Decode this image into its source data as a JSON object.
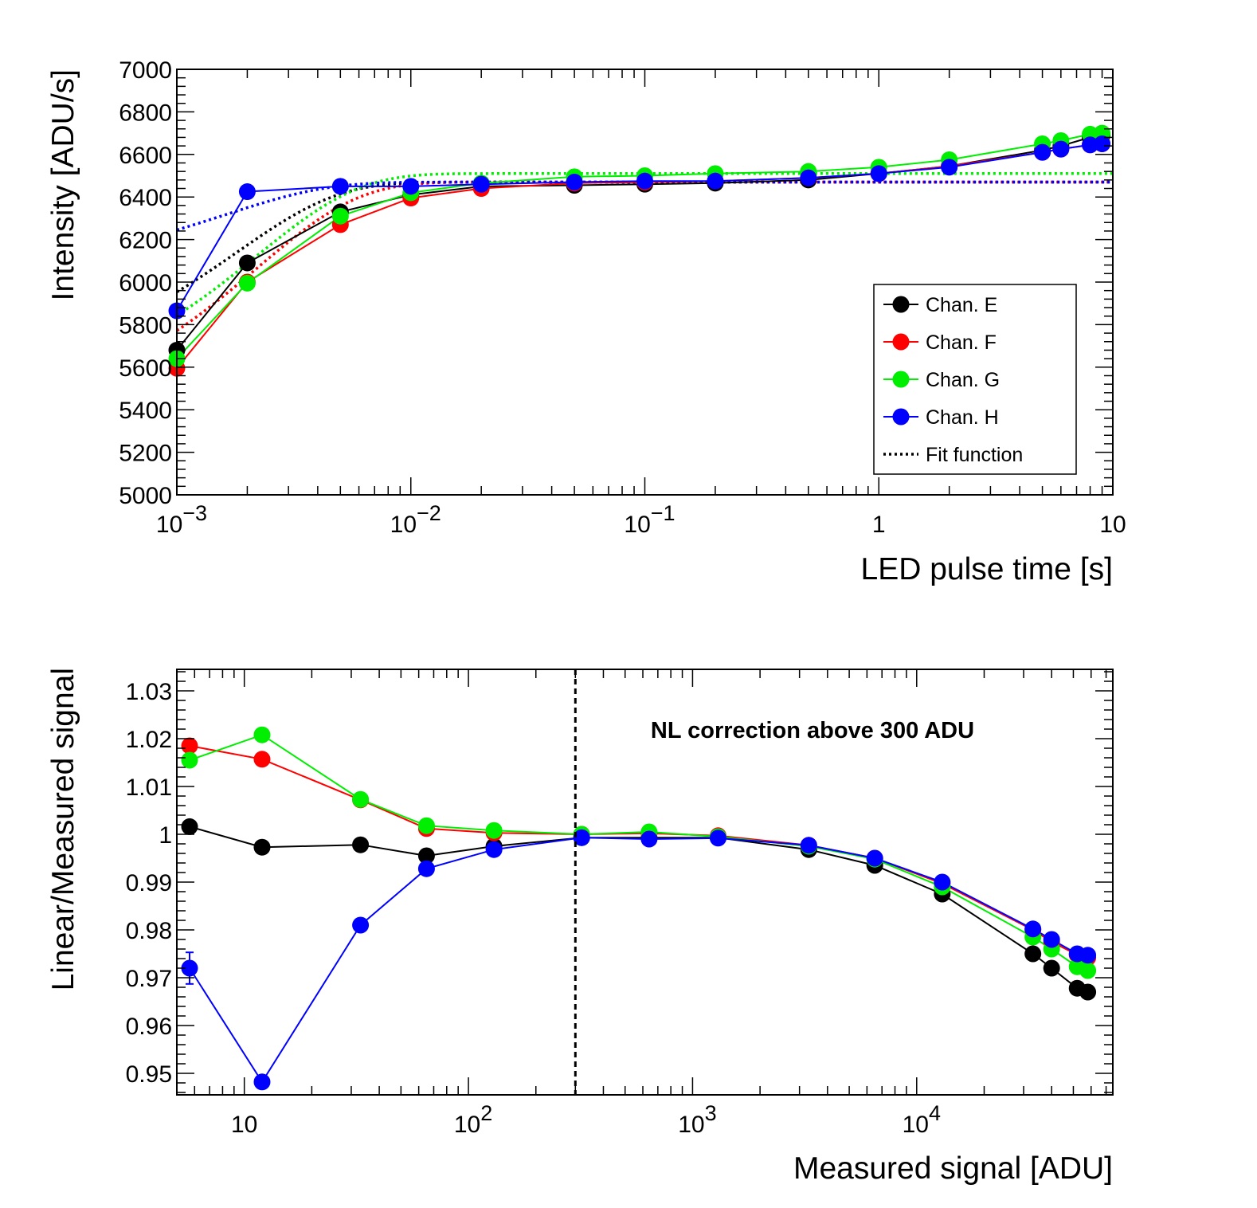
{
  "chart_data": [
    {
      "type": "line",
      "title": "",
      "xlabel": "LED pulse time [s]",
      "ylabel": "Intensity [ADU/s]",
      "xscale": "log",
      "xlim": [
        0.001,
        10
      ],
      "ylim": [
        5000,
        7000
      ],
      "x_tick_labels": [
        {
          "value": 0.001,
          "base": "10",
          "exp": "−3"
        },
        {
          "value": 0.01,
          "base": "10",
          "exp": "−2"
        },
        {
          "value": 0.1,
          "base": "10",
          "exp": "−1"
        },
        {
          "value": 1,
          "base": "1",
          "exp": ""
        },
        {
          "value": 10,
          "base": "10",
          "exp": ""
        }
      ],
      "y_ticks": [
        5000,
        5200,
        5400,
        5600,
        5800,
        6000,
        6200,
        6400,
        6600,
        6800,
        7000
      ],
      "y_tick_labels": [
        "5000",
        "5200",
        "5400",
        "5600",
        "5800",
        "6000",
        "6200",
        "6400",
        "6600",
        "6800",
        "7000"
      ],
      "legend_position": "bottom-right",
      "legend": [
        {
          "label": "Chan. E",
          "color": "#000000",
          "style": "marker"
        },
        {
          "label": "Chan. F",
          "color": "#ff0000",
          "style": "marker"
        },
        {
          "label": "Chan. G",
          "color": "#00ee00",
          "style": "marker"
        },
        {
          "label": "Chan. H",
          "color": "#0000ff",
          "style": "marker"
        },
        {
          "label": "Fit function",
          "color": "#000000",
          "style": "dotted"
        }
      ],
      "series": [
        {
          "name": "Chan. E",
          "color": "#000000",
          "x": [
            0.001,
            0.002,
            0.005,
            0.01,
            0.02,
            0.05,
            0.1,
            0.2,
            0.5,
            1,
            2,
            5,
            6,
            8,
            9
          ],
          "y": [
            5680,
            6090,
            6330,
            6410,
            6450,
            6455,
            6460,
            6465,
            6480,
            6510,
            6545,
            6620,
            6640,
            6680,
            6690
          ]
        },
        {
          "name": "Chan. F",
          "color": "#ff0000",
          "x": [
            0.001,
            0.002,
            0.005,
            0.01,
            0.02,
            0.05,
            0.1,
            0.2,
            0.5,
            1,
            2,
            5,
            6,
            8,
            9
          ],
          "y": [
            5595,
            6000,
            6270,
            6395,
            6440,
            6465,
            6470,
            6475,
            6490,
            6510,
            6545,
            6610,
            6625,
            6645,
            6650
          ]
        },
        {
          "name": "Chan. G",
          "color": "#00ee00",
          "x": [
            0.001,
            0.002,
            0.005,
            0.01,
            0.02,
            0.05,
            0.1,
            0.2,
            0.5,
            1,
            2,
            5,
            6,
            8,
            9
          ],
          "y": [
            5640,
            5995,
            6310,
            6420,
            6465,
            6495,
            6500,
            6510,
            6520,
            6540,
            6575,
            6650,
            6665,
            6695,
            6700
          ]
        },
        {
          "name": "Chan. H",
          "color": "#0000ff",
          "x": [
            0.001,
            0.002,
            0.005,
            0.01,
            0.02,
            0.05,
            0.1,
            0.2,
            0.5,
            1,
            2,
            5,
            6,
            8,
            9
          ],
          "y": [
            5865,
            6425,
            6450,
            6450,
            6460,
            6470,
            6475,
            6475,
            6490,
            6510,
            6540,
            6610,
            6625,
            6645,
            6650
          ]
        }
      ],
      "fit_functions": [
        {
          "name": "Fit function (E)",
          "color": "#000000",
          "plateau": 6470,
          "amplitude": 900,
          "tau": 0.0018
        },
        {
          "name": "Fit function (F)",
          "color": "#ff0000",
          "plateau": 6470,
          "amplitude": 1100,
          "tau": 0.0022
        },
        {
          "name": "Fit function (G)",
          "color": "#00ee00",
          "plateau": 6510,
          "amplitude": 1050,
          "tau": 0.0022
        },
        {
          "name": "Fit function (H)",
          "color": "#0000ff",
          "plateau": 6470,
          "amplitude": 420,
          "tau": 0.0016
        }
      ]
    },
    {
      "type": "line",
      "title": "",
      "xlabel": "Measured signal [ADU]",
      "ylabel": "Linear/Measured signal",
      "xscale": "log",
      "xlim": [
        5,
        75000
      ],
      "ylim": [
        0.9455,
        1.0345
      ],
      "x_tick_labels": [
        {
          "value": 10,
          "base": "10",
          "exp": ""
        },
        {
          "value": 100,
          "base": "10",
          "exp": "2"
        },
        {
          "value": 1000,
          "base": "10",
          "exp": "3"
        },
        {
          "value": 10000,
          "base": "10",
          "exp": "4"
        }
      ],
      "y_ticks": [
        0.95,
        0.96,
        0.97,
        0.98,
        0.99,
        1.0,
        1.01,
        1.02,
        1.03
      ],
      "y_tick_labels": [
        "0.95",
        "0.96",
        "0.97",
        "0.98",
        "0.99",
        "1",
        "1.01",
        "1.02",
        "1.03"
      ],
      "annotation": "NL correction above 300 ADU",
      "threshold_x": 300,
      "series": [
        {
          "name": "Chan. E",
          "color": "#000000",
          "x": [
            5.7,
            12,
            33,
            65,
            130,
            320,
            640,
            1300,
            3300,
            6500,
            13000,
            33000,
            40000,
            52000,
            58000
          ],
          "y": [
            1.0016,
            0.9973,
            0.9978,
            0.9955,
            0.9975,
            0.9993,
            0.9993,
            0.9993,
            0.9968,
            0.9935,
            0.9875,
            0.975,
            0.972,
            0.9678,
            0.967
          ],
          "err": [
            0.0012,
            0,
            0,
            0,
            0,
            0,
            0,
            0,
            0,
            0,
            0,
            0,
            0,
            0,
            0
          ]
        },
        {
          "name": "Chan. F",
          "color": "#ff0000",
          "x": [
            5.7,
            12,
            33,
            65,
            130,
            320,
            640,
            1300,
            3300,
            6500,
            13000,
            33000,
            40000,
            52000,
            58000
          ],
          "y": [
            1.0185,
            1.0157,
            1.0072,
            1.0012,
            1.0003,
            1.0,
            1.0002,
            0.9997,
            0.9977,
            0.995,
            0.9897,
            0.98,
            0.9775,
            0.9748,
            0.9742
          ],
          "err": [
            0.0008,
            0,
            0,
            0,
            0,
            0,
            0,
            0,
            0,
            0,
            0,
            0,
            0,
            0,
            0
          ]
        },
        {
          "name": "Chan. G",
          "color": "#00ee00",
          "x": [
            5.7,
            12,
            33,
            65,
            130,
            320,
            640,
            1300,
            3300,
            6500,
            13000,
            33000,
            40000,
            52000,
            58000
          ],
          "y": [
            1.0155,
            1.0208,
            1.0073,
            1.0018,
            1.0008,
            1.0,
            1.0005,
            0.9995,
            0.9975,
            0.9948,
            0.989,
            0.9785,
            0.976,
            0.9723,
            0.9715
          ],
          "err": [
            0.0012,
            0,
            0,
            0,
            0,
            0,
            0,
            0,
            0,
            0,
            0,
            0,
            0,
            0,
            0
          ]
        },
        {
          "name": "Chan. H",
          "color": "#0000ff",
          "x": [
            5.7,
            12,
            33,
            65,
            130,
            320,
            640,
            1300,
            3300,
            6500,
            13000,
            33000,
            40000,
            52000,
            58000
          ],
          "y": [
            0.972,
            0.9482,
            0.981,
            0.9928,
            0.9968,
            0.9993,
            0.999,
            0.9992,
            0.9977,
            0.995,
            0.99,
            0.9802,
            0.978,
            0.975,
            0.9747
          ],
          "err": [
            0.0033,
            0,
            0,
            0,
            0,
            0,
            0,
            0,
            0,
            0,
            0,
            0,
            0,
            0,
            0
          ]
        }
      ]
    }
  ]
}
